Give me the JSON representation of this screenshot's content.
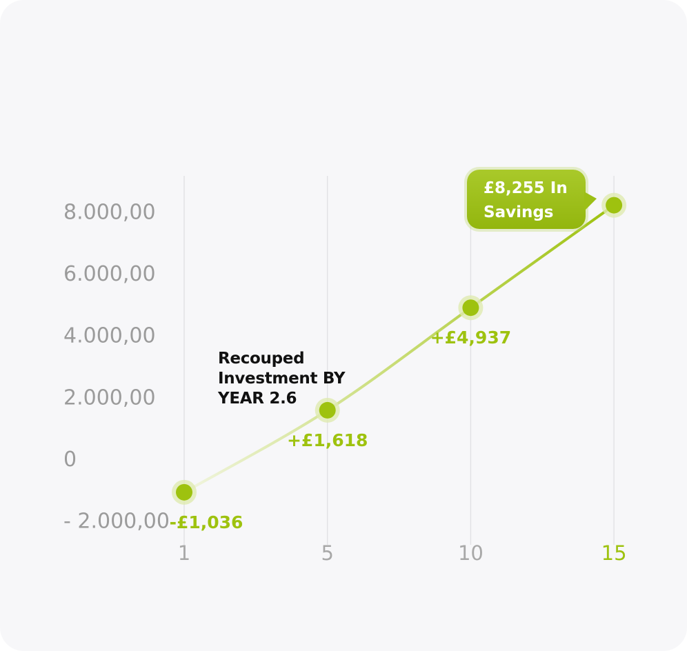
{
  "chart_data": {
    "type": "line",
    "annotation": "Recouped Investment BY YEAR 2.6",
    "categories": [
      "1",
      "5",
      "10",
      "15"
    ],
    "values": [
      -1036,
      1618,
      4937,
      8255
    ],
    "value_labels": [
      "-£1,036",
      "+£1,618",
      "+£4,937",
      "£8,255 In Savings"
    ],
    "color": "#9ec20f",
    "highlight_index": 3,
    "ylim": [
      -2000,
      8000
    ],
    "yticks": [
      8000,
      6000,
      4000,
      2000,
      0,
      {
        "value": 8000,
        "label": "8.000,00"
      },
      {
        "value": 6000,
        "label": "6.000,00"
      },
      {
        "value": 4000,
        "label": "4.000,00"
      },
      {
        "value": 2000,
        "label": "2.000,00"
      },
      {
        "value": -2000,
        "label": "- 2.000,00"
      }
    ],
    "grid": true
  }
}
